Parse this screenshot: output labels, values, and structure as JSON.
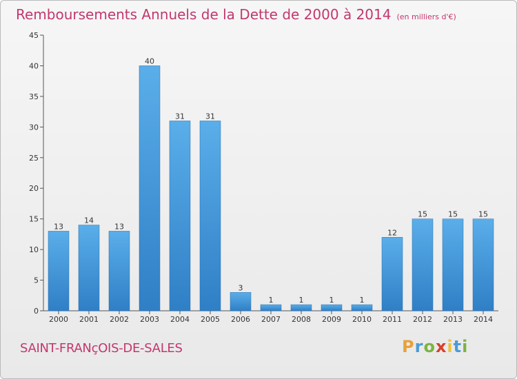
{
  "title": "Remboursements Annuels de la Dette de 2000 à 2014",
  "subtitle": "(en milliers d'€)",
  "commune": "SAINT-FRANçOIS-DE-SALES",
  "logo": {
    "text": "Proxiti"
  },
  "colors": {
    "title": "#c2376e",
    "bar_light": "#5aaee9",
    "bar_dark": "#2f7fc6",
    "axis": "#555555"
  },
  "chart_data": {
    "type": "bar",
    "title": "Remboursements Annuels de la Dette de 2000 à 2014",
    "subtitle": "(en milliers d'€)",
    "xlabel": "",
    "ylabel": "",
    "categories": [
      "2000",
      "2001",
      "2002",
      "2003",
      "2004",
      "2005",
      "2006",
      "2007",
      "2008",
      "2009",
      "2010",
      "2011",
      "2012",
      "2013",
      "2014"
    ],
    "values": [
      13,
      14,
      13,
      40,
      31,
      31,
      3,
      1,
      1,
      1,
      1,
      12,
      15,
      15,
      15
    ],
    "ylim": [
      0,
      45
    ],
    "yticks": [
      0,
      5,
      10,
      15,
      20,
      25,
      30,
      35,
      40,
      45
    ],
    "grid": false,
    "legend": "none"
  }
}
